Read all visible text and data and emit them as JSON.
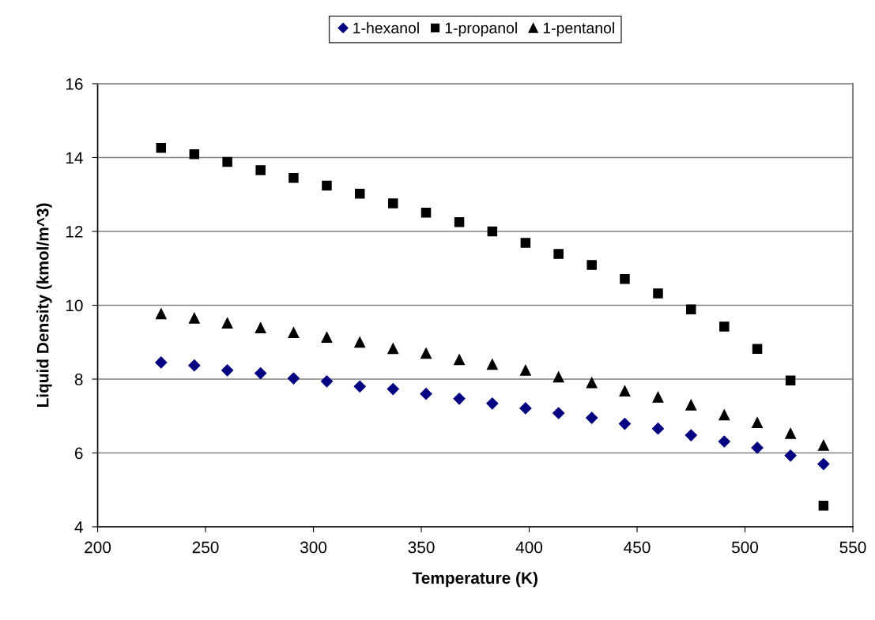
{
  "chart_data": {
    "type": "scatter",
    "xlabel": "Temperature (K)",
    "ylabel": "Liquid Density (kmol/m^3)",
    "x": [
      229.4,
      244.8,
      260.1,
      275.5,
      290.8,
      306.2,
      321.5,
      336.9,
      352.2,
      367.6,
      382.9,
      398.3,
      413.6,
      429.0,
      444.3,
      459.7,
      475.0,
      490.4,
      505.7,
      521.1,
      536.4
    ],
    "series": [
      {
        "name": "1-hexanol",
        "color": "#000080",
        "marker": "diamond",
        "values": [
          8.45,
          8.37,
          8.24,
          8.16,
          8.02,
          7.94,
          7.8,
          7.73,
          7.6,
          7.47,
          7.34,
          7.21,
          7.08,
          6.95,
          6.79,
          6.66,
          6.48,
          6.31,
          6.14,
          5.93,
          5.7
        ]
      },
      {
        "name": "1-propanol",
        "color": "#000000",
        "marker": "square",
        "values": [
          14.26,
          14.09,
          13.88,
          13.66,
          13.45,
          13.24,
          13.02,
          12.76,
          12.51,
          12.25,
          12.0,
          11.69,
          11.39,
          11.09,
          10.71,
          10.32,
          9.89,
          9.42,
          8.82,
          7.96,
          4.57
        ]
      },
      {
        "name": "1-pentanol",
        "color": "#000000",
        "marker": "triangle",
        "values": [
          9.77,
          9.65,
          9.52,
          9.39,
          9.26,
          9.13,
          9.0,
          8.83,
          8.7,
          8.53,
          8.4,
          8.24,
          8.06,
          7.9,
          7.68,
          7.51,
          7.3,
          7.03,
          6.82,
          6.53,
          6.21
        ]
      }
    ],
    "xlim": [
      200,
      550
    ],
    "xticks": [
      200,
      250,
      300,
      350,
      400,
      450,
      500,
      550
    ],
    "ylim": [
      4,
      16
    ],
    "yticks": [
      4,
      6,
      8,
      10,
      12,
      14,
      16
    ],
    "grid": "y",
    "legend": "top"
  }
}
